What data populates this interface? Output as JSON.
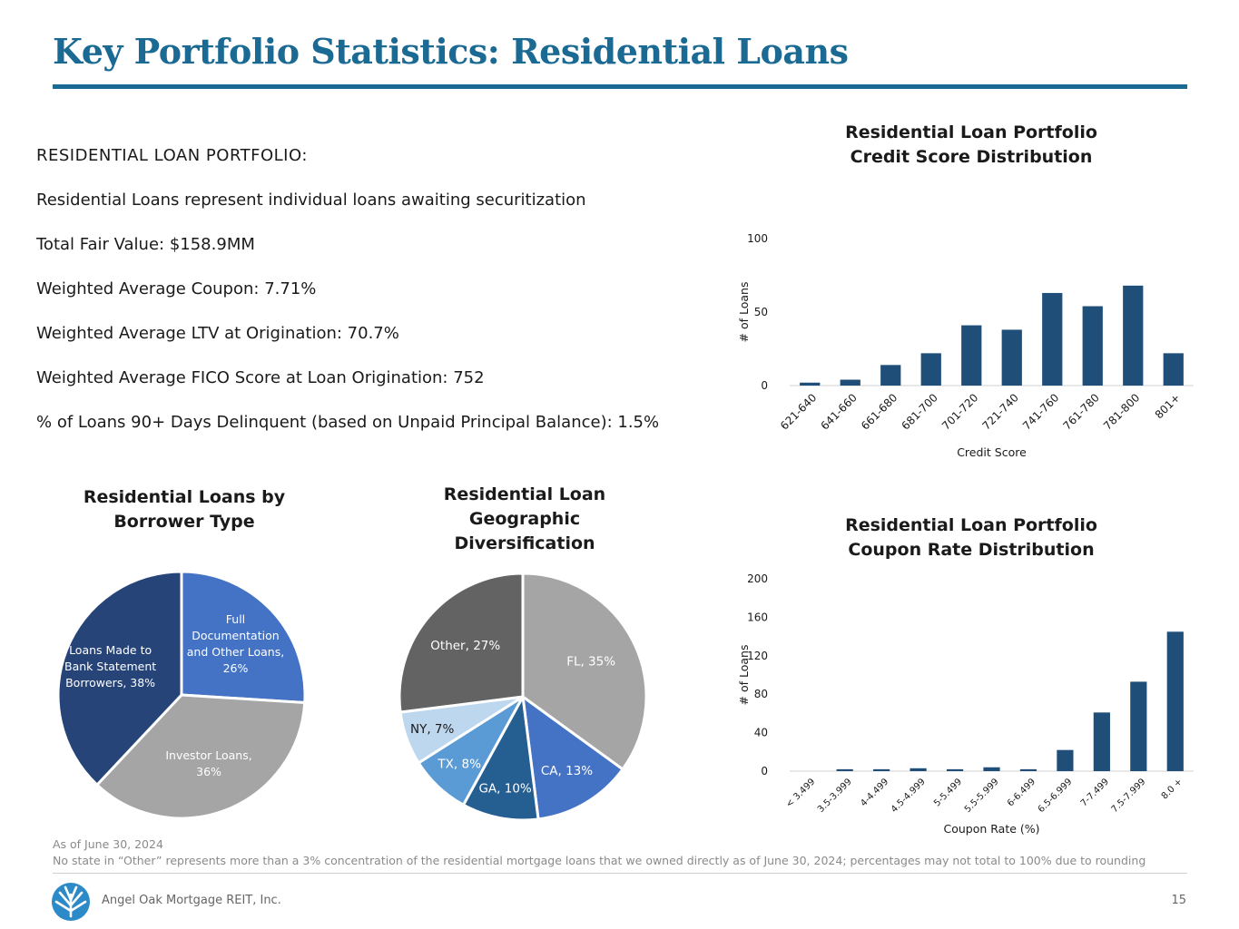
{
  "page": {
    "title": "Key Portfolio Statistics: Residential Loans",
    "as_of": "As of June 30, 2024",
    "footnote": "No state in “Other” represents more than a 3% concentration of the residential mortgage loans that we owned directly as of June 30, 2024; percentages may not total to 100% due to rounding",
    "company": "Angel Oak Mortgage REIT, Inc.",
    "page_number": "15"
  },
  "stats": {
    "heading": "RESIDENTIAL LOAN PORTFOLIO:",
    "lines": [
      "Residential Loans represent individual loans awaiting securitization",
      "Total Fair Value: $158.9MM",
      "Weighted Average Coupon: 7.71%",
      "Weighted Average LTV at Origination: 70.7%",
      "Weighted Average FICO Score at Loan Origination: 752",
      "% of Loans 90+ Days Delinquent (based on Unpaid Principal Balance): 1.5%"
    ]
  },
  "colors": {
    "brand": "#1b6a93",
    "bar": "#1f4e79"
  },
  "chart_data": [
    {
      "type": "bar",
      "title_lines": [
        "Residential Loan Portfolio",
        "Credit Score Distribution"
      ],
      "xlabel": "Credit Score",
      "ylabel": "# of Loans",
      "categories": [
        "621-640",
        "641-660",
        "661-680",
        "681-700",
        "701-720",
        "721-740",
        "741-760",
        "761-780",
        "781-800",
        "801+"
      ],
      "values": [
        2,
        4,
        14,
        22,
        41,
        38,
        63,
        54,
        68,
        22
      ],
      "ylim": [
        0,
        100
      ],
      "yticks": [
        0,
        50,
        100
      ],
      "grid": false
    },
    {
      "type": "bar",
      "title_lines": [
        "Residential Loan Portfolio",
        "Coupon Rate Distribution"
      ],
      "xlabel": "Coupon Rate (%)",
      "ylabel": "# of Loans",
      "categories": [
        "< 3.499",
        "3.5-3.999",
        "4-4.499",
        "4.5-4.999",
        "5-5.499",
        "5.5-5.999",
        "6-6.499",
        "6.5-6.999",
        "7-7.499",
        "7.5-7.999",
        "8.0 +"
      ],
      "values": [
        0,
        2,
        2,
        3,
        2,
        4,
        2,
        22,
        61,
        93,
        145
      ],
      "ylim": [
        0,
        200
      ],
      "yticks": [
        0,
        40,
        80,
        120,
        160,
        200
      ],
      "grid": false
    },
    {
      "type": "pie",
      "title_lines": [
        "Residential Loans by",
        "Borrower Type"
      ],
      "slices": [
        {
          "label_lines": [
            "Full",
            "Documentation",
            "and Other Loans,",
            "26%"
          ],
          "value": 26,
          "color": "#4472c4"
        },
        {
          "label_lines": [
            "Investor Loans,",
            "36%"
          ],
          "value": 36,
          "color": "#a5a5a5"
        },
        {
          "label_lines": [
            "Loans Made to",
            "Bank Statement",
            "Borrowers, 38%"
          ],
          "value": 38,
          "color": "#264478"
        }
      ]
    },
    {
      "type": "pie",
      "title_lines": [
        "Residential Loan",
        "Geographic",
        "Diversification"
      ],
      "slices": [
        {
          "label_lines": [
            "FL, 35%"
          ],
          "value": 35,
          "color": "#a5a5a5"
        },
        {
          "label_lines": [
            "CA, 13%"
          ],
          "value": 13,
          "color": "#4472c4"
        },
        {
          "label_lines": [
            "GA, 10%"
          ],
          "value": 10,
          "color": "#255e91"
        },
        {
          "label_lines": [
            "TX, 8%"
          ],
          "value": 8,
          "color": "#5b9bd5"
        },
        {
          "label_lines": [
            "NY, 7%"
          ],
          "value": 7,
          "color": "#bdd7ee"
        },
        {
          "label_lines": [
            "Other, 27%"
          ],
          "value": 27,
          "color": "#636363"
        }
      ]
    }
  ]
}
